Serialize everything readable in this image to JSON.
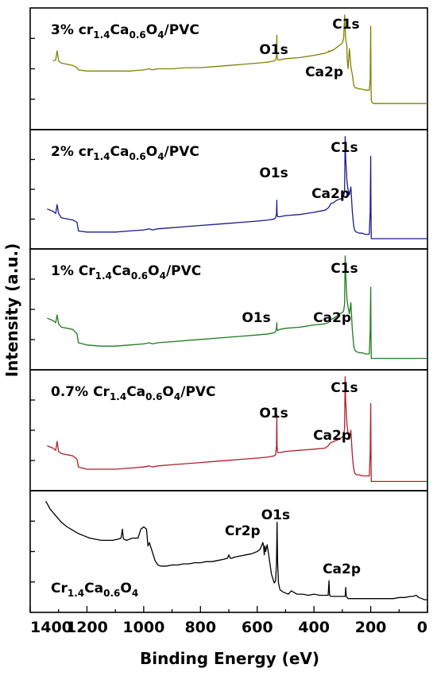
{
  "chart_data": {
    "type": "line",
    "xlabel": "Binding Energy (eV)",
    "ylabel": "Intensity (a.u.)",
    "xlim": [
      1400,
      0
    ],
    "xticks": [
      1400,
      1200,
      1000,
      800,
      600,
      400,
      200,
      0
    ],
    "x_reversed": true,
    "y_tick_labels": false,
    "layout": "stacked panels, shared x axis",
    "panels": [
      {
        "label": {
          "pre": "3% cr",
          "s1": "1.4",
          "m1": "Ca",
          "s2": "0.6",
          "m2": "O",
          "s3": "4",
          "post": "/PVC"
        },
        "color": "#808000",
        "peaks": [
          {
            "text": "O1s",
            "x": 531
          },
          {
            "text": "Ca2p",
            "x": 347
          },
          {
            "text": "C1s",
            "x": 285
          }
        ],
        "x": [
          1320,
          1310,
          1305,
          1300,
          1290,
          1250,
          1235,
          1230,
          1200,
          1150,
          1100,
          1050,
          1000,
          980,
          970,
          950,
          900,
          850,
          800,
          750,
          700,
          650,
          600,
          560,
          540,
          535,
          532,
          531,
          530,
          528,
          520,
          500,
          450,
          400,
          360,
          350,
          347,
          345,
          340,
          330,
          320,
          310,
          300,
          295,
          292,
          290,
          288,
          285,
          284,
          283,
          280,
          275,
          270,
          265,
          262,
          260,
          258,
          255,
          250,
          240,
          230,
          220,
          210,
          205,
          202,
          200,
          199,
          198,
          195,
          190,
          180,
          150,
          100,
          50,
          0
        ],
        "y": [
          0.57,
          0.58,
          0.66,
          0.57,
          0.55,
          0.53,
          0.51,
          0.49,
          0.48,
          0.48,
          0.48,
          0.48,
          0.49,
          0.5,
          0.49,
          0.5,
          0.5,
          0.51,
          0.51,
          0.52,
          0.53,
          0.54,
          0.55,
          0.56,
          0.57,
          0.58,
          0.62,
          0.8,
          0.62,
          0.58,
          0.58,
          0.59,
          0.6,
          0.62,
          0.64,
          0.65,
          0.66,
          0.65,
          0.66,
          0.67,
          0.69,
          0.71,
          0.73,
          0.78,
          0.98,
          0.86,
          0.76,
          0.72,
          0.7,
          0.6,
          0.5,
          0.68,
          0.52,
          0.45,
          0.4,
          0.36,
          0.34,
          0.33,
          0.33,
          0.32,
          0.32,
          0.31,
          0.31,
          0.31,
          0.4,
          0.88,
          0.4,
          0.22,
          0.2,
          0.19,
          0.19,
          0.19,
          0.19,
          0.19,
          0.19
        ]
      },
      {
        "label": {
          "pre": "2% cr",
          "s1": "1.4",
          "m1": "Ca",
          "s2": "0.6",
          "m2": "O",
          "s3": "4",
          "post": "/PVC"
        },
        "color": "#1a1a8c",
        "peaks": [
          {
            "text": "O1s",
            "x": 531
          },
          {
            "text": "Ca2p",
            "x": 347
          },
          {
            "text": "C1s",
            "x": 285
          }
        ],
        "x": [
          1340,
          1320,
          1310,
          1305,
          1300,
          1290,
          1250,
          1235,
          1230,
          1200,
          1150,
          1100,
          1050,
          1000,
          980,
          970,
          950,
          900,
          850,
          800,
          750,
          700,
          650,
          600,
          560,
          540,
          535,
          532,
          531,
          530,
          528,
          520,
          500,
          450,
          400,
          360,
          350,
          347,
          345,
          340,
          330,
          320,
          310,
          300,
          295,
          292,
          290,
          288,
          285,
          284,
          283,
          280,
          275,
          270,
          265,
          262,
          260,
          258,
          255,
          250,
          240,
          230,
          220,
          210,
          205,
          202,
          200,
          199,
          198,
          195,
          190,
          180,
          150,
          100,
          50,
          0
        ],
        "y": [
          0.32,
          0.3,
          0.28,
          0.36,
          0.28,
          0.24,
          0.22,
          0.2,
          0.12,
          0.11,
          0.11,
          0.11,
          0.12,
          0.13,
          0.14,
          0.13,
          0.14,
          0.15,
          0.16,
          0.17,
          0.18,
          0.19,
          0.2,
          0.21,
          0.22,
          0.23,
          0.24,
          0.28,
          0.4,
          0.28,
          0.25,
          0.25,
          0.26,
          0.27,
          0.29,
          0.31,
          0.33,
          0.34,
          0.35,
          0.37,
          0.38,
          0.4,
          0.41,
          0.42,
          0.44,
          0.48,
          0.98,
          0.78,
          0.64,
          0.58,
          0.56,
          0.5,
          0.45,
          0.52,
          0.3,
          0.22,
          0.17,
          0.14,
          0.12,
          0.11,
          0.1,
          0.1,
          0.09,
          0.09,
          0.09,
          0.3,
          0.8,
          0.3,
          0.05,
          0.05,
          0.05,
          0.05,
          0.05,
          0.05,
          0.05,
          0.05
        ]
      },
      {
        "label": {
          "pre": "1% Cr",
          "s1": "1.4",
          "m1": "Ca",
          "s2": "0.6",
          "m2": "O",
          "s3": "4",
          "post": "/PVC"
        },
        "color": "#1f7a1f",
        "peaks": [
          {
            "text": "O1s",
            "x": 531
          },
          {
            "text": "Ca2p",
            "x": 347
          },
          {
            "text": "C1s",
            "x": 285
          }
        ],
        "x": [
          1340,
          1320,
          1310,
          1305,
          1300,
          1290,
          1250,
          1235,
          1230,
          1200,
          1150,
          1100,
          1050,
          1000,
          980,
          970,
          950,
          900,
          850,
          800,
          750,
          700,
          650,
          600,
          560,
          540,
          535,
          532,
          531,
          530,
          528,
          520,
          500,
          450,
          400,
          360,
          350,
          347,
          345,
          340,
          330,
          320,
          310,
          300,
          295,
          292,
          290,
          288,
          285,
          284,
          283,
          280,
          275,
          270,
          265,
          262,
          260,
          258,
          255,
          250,
          240,
          230,
          220,
          210,
          205,
          202,
          200,
          199,
          198,
          195,
          190,
          180,
          150,
          100,
          50,
          0
        ],
        "y": [
          0.42,
          0.4,
          0.38,
          0.45,
          0.37,
          0.34,
          0.32,
          0.28,
          0.2,
          0.18,
          0.17,
          0.17,
          0.18,
          0.19,
          0.2,
          0.19,
          0.2,
          0.21,
          0.22,
          0.23,
          0.24,
          0.25,
          0.26,
          0.27,
          0.28,
          0.29,
          0.3,
          0.33,
          0.38,
          0.32,
          0.31,
          0.32,
          0.33,
          0.34,
          0.36,
          0.37,
          0.38,
          0.39,
          0.4,
          0.41,
          0.42,
          0.44,
          0.46,
          0.47,
          0.49,
          0.55,
          0.98,
          0.82,
          0.66,
          0.6,
          0.58,
          0.52,
          0.46,
          0.56,
          0.32,
          0.24,
          0.18,
          0.15,
          0.13,
          0.12,
          0.11,
          0.11,
          0.1,
          0.1,
          0.1,
          0.3,
          0.7,
          0.3,
          0.06,
          0.06,
          0.06,
          0.06,
          0.06,
          0.06,
          0.06,
          0.06
        ]
      },
      {
        "label": {
          "pre": "0.7% Cr",
          "s1": "1.4",
          "m1": "Ca",
          "s2": "0.6",
          "m2": "O",
          "s3": "4",
          "post": "/PVC"
        },
        "color": "#b0202a",
        "peaks": [
          {
            "text": "O1s",
            "x": 531
          },
          {
            "text": "Ca2p",
            "x": 347
          },
          {
            "text": "C1s",
            "x": 285
          }
        ],
        "x": [
          1340,
          1320,
          1310,
          1305,
          1300,
          1290,
          1250,
          1235,
          1230,
          1200,
          1150,
          1100,
          1050,
          1000,
          980,
          970,
          950,
          900,
          850,
          800,
          750,
          700,
          650,
          600,
          560,
          540,
          535,
          532,
          531,
          530,
          528,
          520,
          500,
          450,
          400,
          360,
          350,
          347,
          345,
          340,
          330,
          320,
          310,
          300,
          295,
          292,
          290,
          288,
          285,
          284,
          283,
          280,
          275,
          270,
          265,
          262,
          260,
          258,
          255,
          250,
          240,
          230,
          220,
          210,
          205,
          202,
          200,
          199,
          198,
          195,
          190,
          180,
          150,
          100,
          50,
          0
        ],
        "y": [
          0.36,
          0.34,
          0.32,
          0.4,
          0.31,
          0.29,
          0.27,
          0.24,
          0.17,
          0.15,
          0.15,
          0.15,
          0.16,
          0.17,
          0.18,
          0.17,
          0.18,
          0.19,
          0.2,
          0.21,
          0.22,
          0.23,
          0.24,
          0.25,
          0.26,
          0.27,
          0.28,
          0.36,
          0.64,
          0.36,
          0.3,
          0.3,
          0.31,
          0.32,
          0.33,
          0.34,
          0.36,
          0.37,
          0.38,
          0.39,
          0.4,
          0.41,
          0.42,
          0.44,
          0.46,
          0.52,
          0.98,
          0.76,
          0.62,
          0.56,
          0.54,
          0.48,
          0.42,
          0.5,
          0.28,
          0.2,
          0.16,
          0.13,
          0.11,
          0.1,
          0.1,
          0.09,
          0.09,
          0.09,
          0.09,
          0.3,
          0.74,
          0.3,
          0.04,
          0.04,
          0.04,
          0.04,
          0.04,
          0.04,
          0.04,
          0.04
        ]
      },
      {
        "label": {
          "pre": "Cr",
          "s1": "1.4",
          "m1": "Ca",
          "s2": "0.6",
          "m2": "O",
          "s3": "4",
          "post": ""
        },
        "color": "#000000",
        "peaks": [
          {
            "text": "Cr2p",
            "x": 580
          },
          {
            "text": "O1s",
            "x": 530
          },
          {
            "text": "Ca2p",
            "x": 347
          }
        ],
        "x": [
          1345,
          1330,
          1310,
          1290,
          1270,
          1250,
          1230,
          1210,
          1190,
          1170,
          1150,
          1130,
          1110,
          1090,
          1080,
          1075,
          1072,
          1070,
          1060,
          1040,
          1020,
          1010,
          1000,
          990,
          985,
          980,
          975,
          970,
          960,
          950,
          940,
          920,
          900,
          880,
          860,
          840,
          820,
          800,
          780,
          760,
          740,
          720,
          705,
          700,
          695,
          690,
          680,
          660,
          640,
          620,
          600,
          590,
          585,
          580,
          577,
          575,
          573,
          570,
          565,
          560,
          550,
          540,
          535,
          532,
          530,
          528,
          525,
          520,
          510,
          500,
          490,
          480,
          460,
          440,
          420,
          400,
          380,
          360,
          350,
          347,
          345,
          340,
          320,
          300,
          290,
          288,
          286,
          280,
          260,
          240,
          220,
          200,
          180,
          160,
          150,
          140,
          120,
          100,
          80,
          60,
          50,
          40,
          30,
          20,
          10,
          0
        ],
        "y": [
          0.95,
          0.88,
          0.82,
          0.76,
          0.72,
          0.69,
          0.66,
          0.64,
          0.62,
          0.61,
          0.6,
          0.6,
          0.6,
          0.61,
          0.62,
          0.7,
          0.62,
          0.61,
          0.6,
          0.62,
          0.62,
          0.7,
          0.72,
          0.7,
          0.55,
          0.58,
          0.54,
          0.5,
          0.42,
          0.38,
          0.37,
          0.37,
          0.38,
          0.38,
          0.39,
          0.39,
          0.4,
          0.4,
          0.41,
          0.41,
          0.42,
          0.43,
          0.44,
          0.47,
          0.44,
          0.44,
          0.45,
          0.46,
          0.47,
          0.48,
          0.5,
          0.52,
          0.55,
          0.58,
          0.54,
          0.47,
          0.55,
          0.5,
          0.56,
          0.48,
          0.3,
          0.22,
          0.24,
          0.4,
          0.76,
          0.4,
          0.22,
          0.16,
          0.14,
          0.13,
          0.12,
          0.15,
          0.12,
          0.12,
          0.11,
          0.12,
          0.11,
          0.11,
          0.11,
          0.24,
          0.11,
          0.1,
          0.1,
          0.1,
          0.1,
          0.18,
          0.1,
          0.08,
          0.08,
          0.08,
          0.08,
          0.08,
          0.08,
          0.08,
          0.08,
          0.08,
          0.08,
          0.09,
          0.09,
          0.1,
          0.1,
          0.11,
          0.09,
          0.08,
          0.07,
          0.07
        ]
      }
    ]
  }
}
